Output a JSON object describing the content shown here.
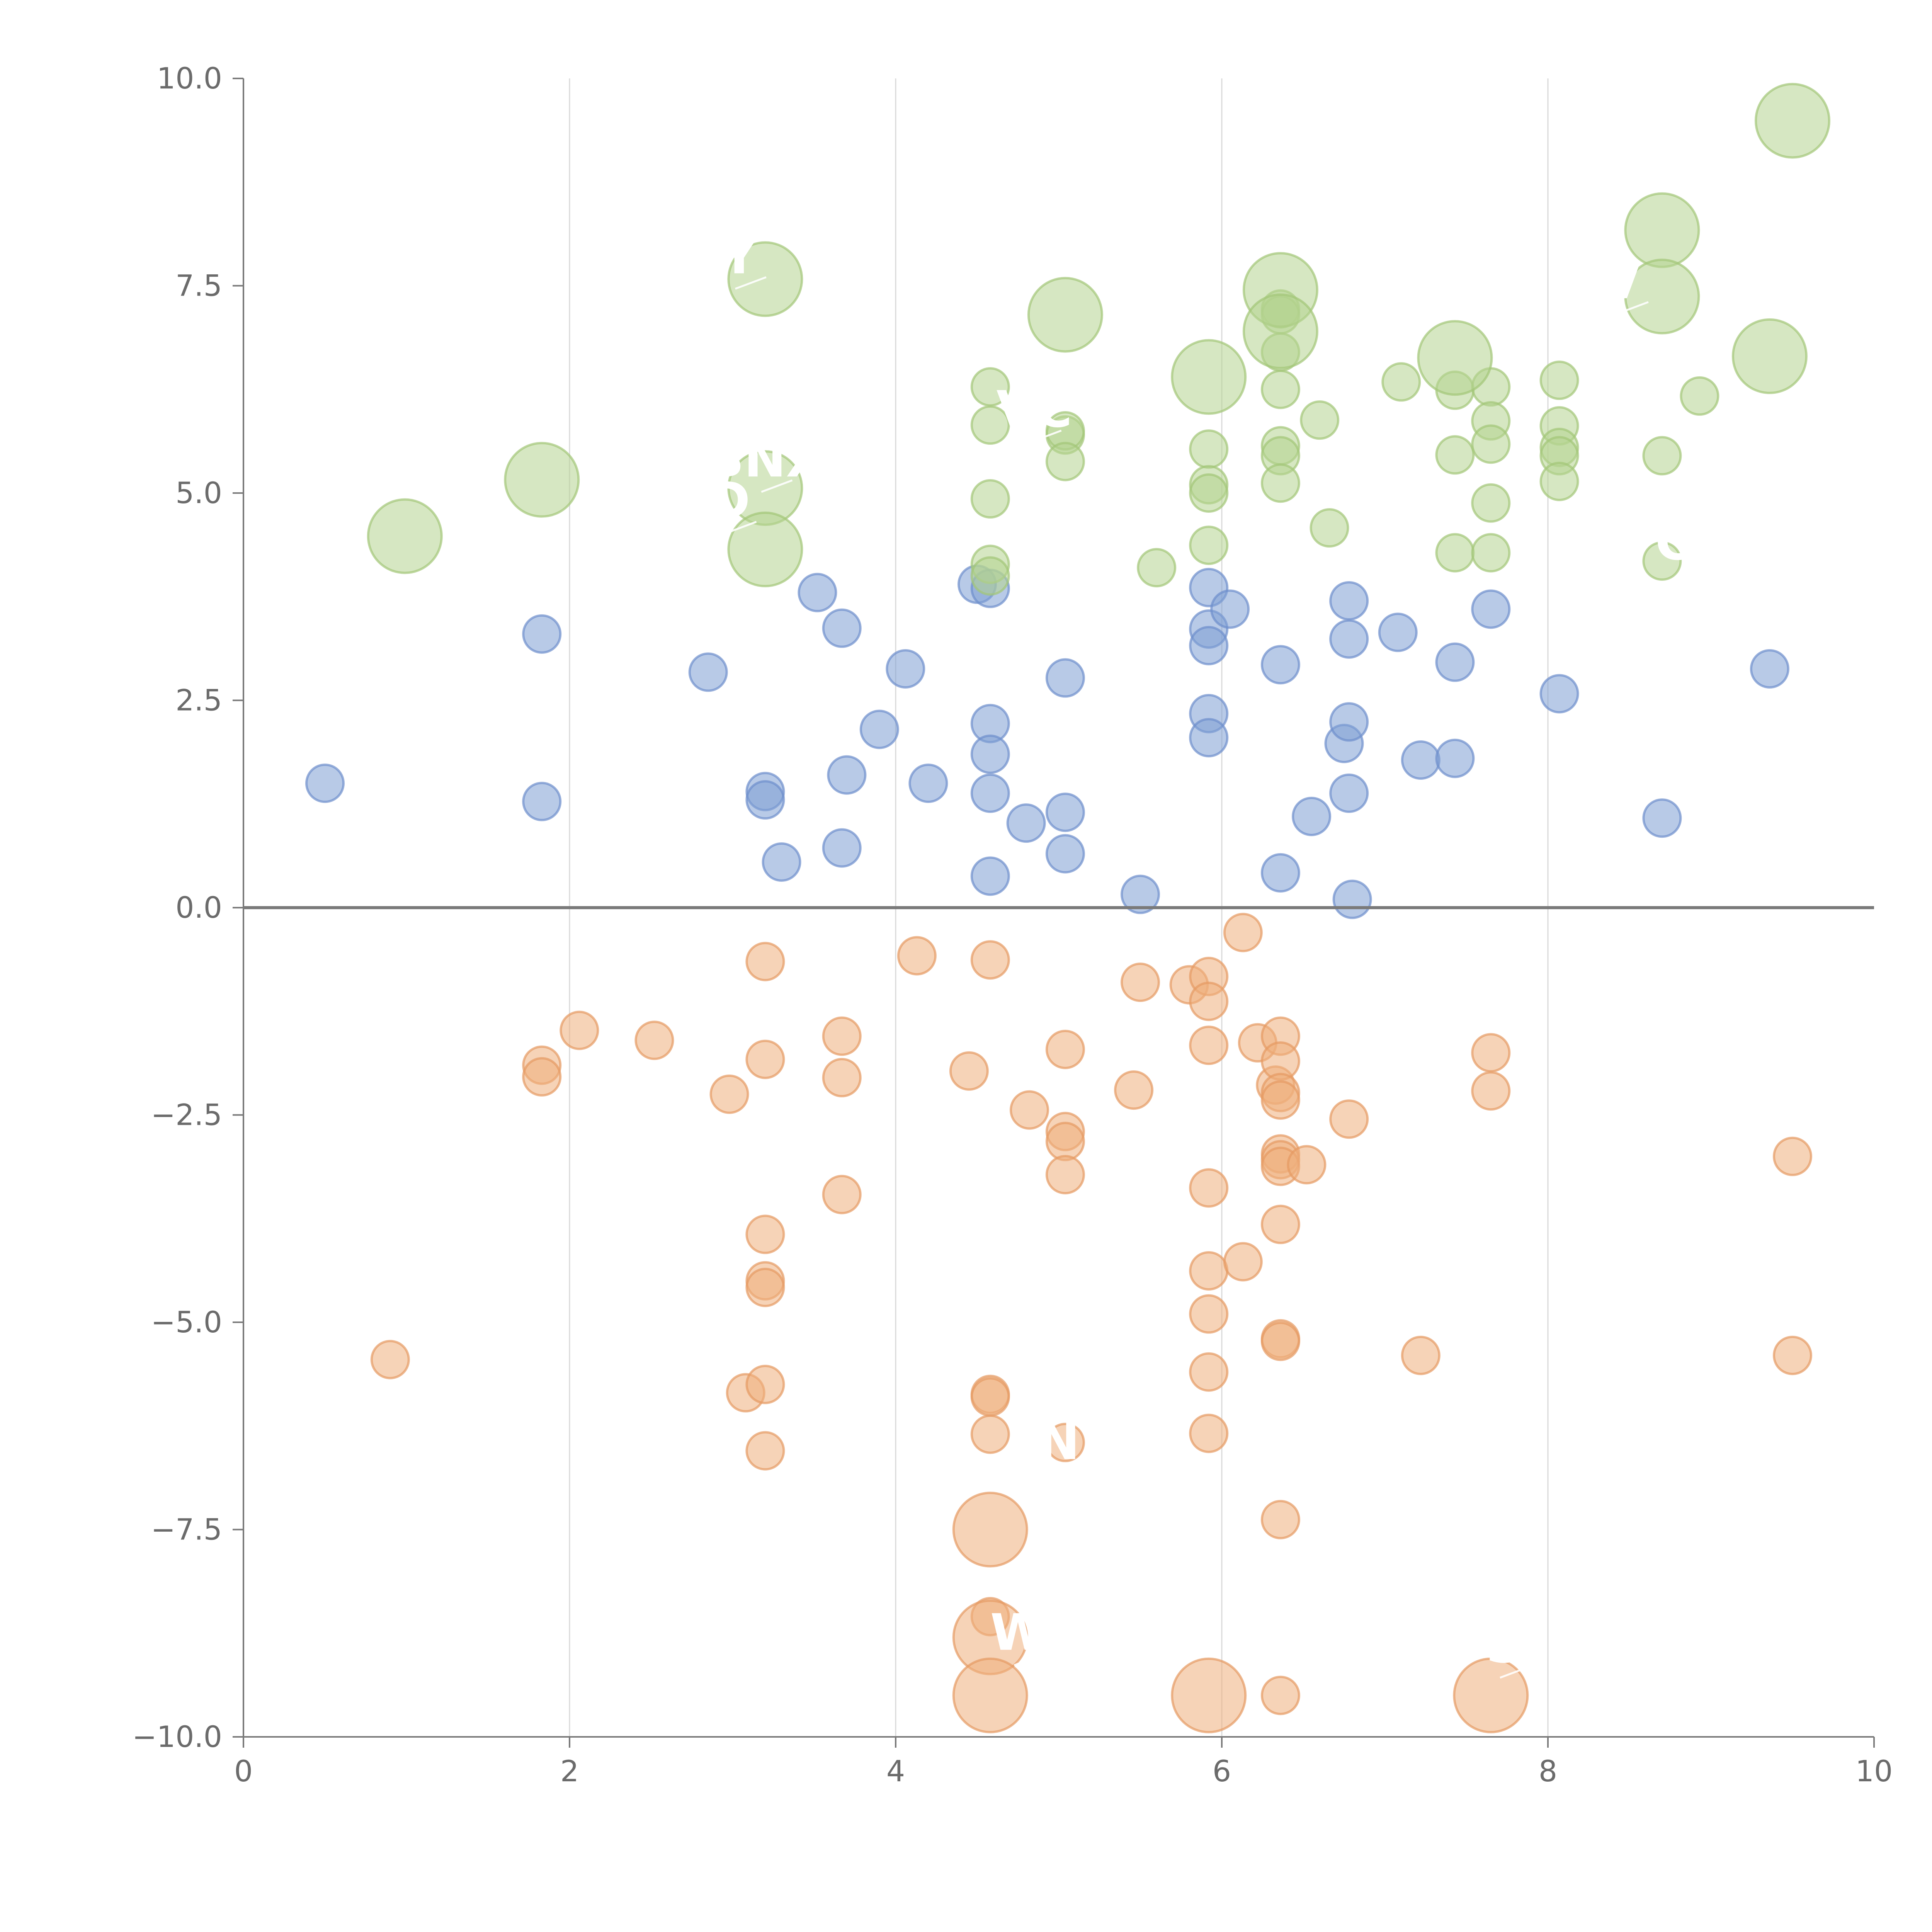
{
  "chart_data": {
    "type": "scatter",
    "title": "",
    "xlabel": "",
    "ylabel": "",
    "xlim": [
      0,
      10
    ],
    "ylim": [
      -10,
      10
    ],
    "x_ticks": [
      "0",
      "2",
      "4",
      "6",
      "8",
      "10"
    ],
    "y_ticks": [
      "10.0",
      "7.5",
      "5.0",
      "2.5",
      "0.0",
      "−2.5",
      "−5.0",
      "−7.5",
      "−10.0"
    ],
    "series": [
      {
        "name": "blue",
        "color": "#7d9fd3",
        "points": [
          {
            "x": 0.5,
            "y": 1.5
          },
          {
            "x": 1.83,
            "y": 3.3
          },
          {
            "x": 1.83,
            "y": 1.28
          },
          {
            "x": 2.85,
            "y": 2.84
          },
          {
            "x": 3.2,
            "y": 1.4
          },
          {
            "x": 3.2,
            "y": 1.3
          },
          {
            "x": 3.3,
            "y": 0.55
          },
          {
            "x": 3.52,
            "y": 3.8
          },
          {
            "x": 3.67,
            "y": 3.37
          },
          {
            "x": 3.67,
            "y": 0.72
          },
          {
            "x": 3.7,
            "y": 1.6
          },
          {
            "x": 3.9,
            "y": 2.15
          },
          {
            "x": 4.06,
            "y": 2.88
          },
          {
            "x": 4.2,
            "y": 1.5
          },
          {
            "x": 4.5,
            "y": 3.9
          },
          {
            "x": 4.58,
            "y": 3.85
          },
          {
            "x": 4.58,
            "y": 2.22
          },
          {
            "x": 4.58,
            "y": 1.85
          },
          {
            "x": 4.58,
            "y": 1.38
          },
          {
            "x": 4.58,
            "y": 0.38
          },
          {
            "x": 4.8,
            "y": 1.02
          },
          {
            "x": 5.04,
            "y": 2.77
          },
          {
            "x": 5.04,
            "y": 1.15
          },
          {
            "x": 5.04,
            "y": 0.65
          },
          {
            "x": 5.5,
            "y": 0.16
          },
          {
            "x": 5.92,
            "y": 3.86
          },
          {
            "x": 5.92,
            "y": 3.36
          },
          {
            "x": 5.92,
            "y": 3.16
          },
          {
            "x": 5.92,
            "y": 2.34
          },
          {
            "x": 5.92,
            "y": 2.05
          },
          {
            "x": 6.05,
            "y": 3.6
          },
          {
            "x": 6.36,
            "y": 2.93
          },
          {
            "x": 6.36,
            "y": 0.42
          },
          {
            "x": 6.55,
            "y": 1.1
          },
          {
            "x": 6.75,
            "y": 1.98
          },
          {
            "x": 6.78,
            "y": 3.7
          },
          {
            "x": 6.78,
            "y": 3.24
          },
          {
            "x": 6.78,
            "y": 2.24
          },
          {
            "x": 6.78,
            "y": 1.38
          },
          {
            "x": 6.8,
            "y": 0.1
          },
          {
            "x": 7.08,
            "y": 3.32
          },
          {
            "x": 7.22,
            "y": 1.78
          },
          {
            "x": 7.43,
            "y": 2.96
          },
          {
            "x": 7.43,
            "y": 1.8
          },
          {
            "x": 7.65,
            "y": 3.6
          },
          {
            "x": 8.07,
            "y": 2.58
          },
          {
            "x": 8.7,
            "y": 1.08
          },
          {
            "x": 9.36,
            "y": 2.88
          }
        ]
      },
      {
        "name": "orange",
        "color": "#efae7c",
        "points": [
          {
            "x": 0.9,
            "y": -5.45
          },
          {
            "x": 1.83,
            "y": -1.9
          },
          {
            "x": 1.83,
            "y": -2.04
          },
          {
            "x": 2.06,
            "y": -1.48
          },
          {
            "x": 2.52,
            "y": -1.6
          },
          {
            "x": 2.98,
            "y": -2.25
          },
          {
            "x": 3.08,
            "y": -5.85
          },
          {
            "x": 3.2,
            "y": -0.65
          },
          {
            "x": 3.2,
            "y": -1.83
          },
          {
            "x": 3.2,
            "y": -3.94
          },
          {
            "x": 3.2,
            "y": -4.5
          },
          {
            "x": 3.2,
            "y": -4.58
          },
          {
            "x": 3.2,
            "y": -5.75
          },
          {
            "x": 3.2,
            "y": -6.55
          },
          {
            "x": 3.67,
            "y": -1.55
          },
          {
            "x": 3.67,
            "y": -2.05
          },
          {
            "x": 3.67,
            "y": -3.46
          },
          {
            "x": 4.13,
            "y": -0.58
          },
          {
            "x": 4.45,
            "y": -1.97
          },
          {
            "x": 4.58,
            "y": -0.63
          },
          {
            "x": 4.58,
            "y": -5.87
          },
          {
            "x": 4.58,
            "y": -5.9
          },
          {
            "x": 4.58,
            "y": -6.35
          },
          {
            "x": 4.58,
            "y": -8.55
          },
          {
            "x": 4.82,
            "y": -2.44
          },
          {
            "x": 5.04,
            "y": -1.71
          },
          {
            "x": 5.04,
            "y": -2.7
          },
          {
            "x": 5.04,
            "y": -2.82
          },
          {
            "x": 5.04,
            "y": -3.22
          },
          {
            "x": 5.04,
            "y": -6.45
          },
          {
            "x": 5.46,
            "y": -2.2
          },
          {
            "x": 5.5,
            "y": -0.9
          },
          {
            "x": 5.8,
            "y": -0.93
          },
          {
            "x": 5.92,
            "y": -0.83
          },
          {
            "x": 5.92,
            "y": -1.13
          },
          {
            "x": 5.92,
            "y": -1.66
          },
          {
            "x": 5.92,
            "y": -3.38
          },
          {
            "x": 5.92,
            "y": -4.38
          },
          {
            "x": 5.92,
            "y": -4.9
          },
          {
            "x": 5.92,
            "y": -5.6
          },
          {
            "x": 5.92,
            "y": -6.34
          },
          {
            "x": 6.13,
            "y": -0.3
          },
          {
            "x": 6.13,
            "y": -4.27
          },
          {
            "x": 6.22,
            "y": -1.63
          },
          {
            "x": 6.33,
            "y": -2.14
          },
          {
            "x": 6.36,
            "y": -1.55
          },
          {
            "x": 6.36,
            "y": -1.85
          },
          {
            "x": 6.36,
            "y": -2.23
          },
          {
            "x": 6.36,
            "y": -2.32
          },
          {
            "x": 6.36,
            "y": -2.97
          },
          {
            "x": 6.36,
            "y": -3.04
          },
          {
            "x": 6.36,
            "y": -3.12
          },
          {
            "x": 6.36,
            "y": -3.82
          },
          {
            "x": 6.36,
            "y": -5.2
          },
          {
            "x": 6.36,
            "y": -5.23
          },
          {
            "x": 6.36,
            "y": -7.38
          },
          {
            "x": 6.36,
            "y": -9.5
          },
          {
            "x": 6.52,
            "y": -3.1
          },
          {
            "x": 6.78,
            "y": -2.55
          },
          {
            "x": 7.22,
            "y": -5.4
          },
          {
            "x": 7.65,
            "y": -1.75
          },
          {
            "x": 7.65,
            "y": -2.21
          },
          {
            "x": 9.5,
            "y": -3.0
          },
          {
            "x": 9.5,
            "y": -5.4
          }
        ],
        "big_points": [
          {
            "x": 4.58,
            "y": -7.5,
            "size": "large"
          },
          {
            "x": 4.58,
            "y": -8.8,
            "size": "large"
          },
          {
            "x": 4.58,
            "y": -9.5,
            "size": "large"
          },
          {
            "x": 5.92,
            "y": -9.5,
            "size": "large"
          },
          {
            "x": 7.65,
            "y": -9.5,
            "size": "large"
          }
        ]
      },
      {
        "name": "green",
        "color": "#b5d38f",
        "points": [
          {
            "x": 4.58,
            "y": 6.28
          },
          {
            "x": 4.58,
            "y": 5.82
          },
          {
            "x": 4.58,
            "y": 4.93
          },
          {
            "x": 4.58,
            "y": 4.14
          },
          {
            "x": 4.58,
            "y": 4.0
          },
          {
            "x": 5.04,
            "y": 5.7
          },
          {
            "x": 5.04,
            "y": 5.75
          },
          {
            "x": 5.04,
            "y": 5.38
          },
          {
            "x": 5.6,
            "y": 4.1
          },
          {
            "x": 5.92,
            "y": 5.53
          },
          {
            "x": 5.92,
            "y": 5.1
          },
          {
            "x": 5.92,
            "y": 5.0
          },
          {
            "x": 5.92,
            "y": 4.37
          },
          {
            "x": 6.36,
            "y": 7.22
          },
          {
            "x": 6.36,
            "y": 7.15
          },
          {
            "x": 6.36,
            "y": 6.7
          },
          {
            "x": 6.36,
            "y": 6.25
          },
          {
            "x": 6.36,
            "y": 5.57
          },
          {
            "x": 6.36,
            "y": 5.45
          },
          {
            "x": 6.36,
            "y": 5.12
          },
          {
            "x": 6.6,
            "y": 5.88
          },
          {
            "x": 6.66,
            "y": 4.58
          },
          {
            "x": 7.1,
            "y": 6.34
          },
          {
            "x": 7.43,
            "y": 6.24
          },
          {
            "x": 7.43,
            "y": 5.46
          },
          {
            "x": 7.43,
            "y": 4.28
          },
          {
            "x": 7.65,
            "y": 6.28
          },
          {
            "x": 7.65,
            "y": 5.87
          },
          {
            "x": 7.65,
            "y": 5.59
          },
          {
            "x": 7.65,
            "y": 4.88
          },
          {
            "x": 7.65,
            "y": 4.28
          },
          {
            "x": 8.07,
            "y": 6.36
          },
          {
            "x": 8.07,
            "y": 5.81
          },
          {
            "x": 8.07,
            "y": 5.55
          },
          {
            "x": 8.07,
            "y": 5.45
          },
          {
            "x": 8.07,
            "y": 5.14
          },
          {
            "x": 8.7,
            "y": 5.45
          },
          {
            "x": 8.7,
            "y": 4.18
          },
          {
            "x": 8.93,
            "y": 6.17
          }
        ],
        "big_points": [
          {
            "x": 0.99,
            "y": 4.48,
            "size": "large"
          },
          {
            "x": 1.83,
            "y": 5.16,
            "size": "large"
          },
          {
            "x": 3.2,
            "y": 7.58,
            "size": "large"
          },
          {
            "x": 3.2,
            "y": 5.06,
            "size": "large"
          },
          {
            "x": 3.2,
            "y": 4.32,
            "size": "large"
          },
          {
            "x": 5.04,
            "y": 7.15,
            "size": "large"
          },
          {
            "x": 5.92,
            "y": 6.4,
            "size": "large"
          },
          {
            "x": 6.36,
            "y": 7.45,
            "size": "large"
          },
          {
            "x": 6.36,
            "y": 6.95,
            "size": "large"
          },
          {
            "x": 7.43,
            "y": 6.63,
            "size": "large"
          },
          {
            "x": 8.7,
            "y": 8.17,
            "size": "large"
          },
          {
            "x": 8.7,
            "y": 7.37,
            "size": "large"
          },
          {
            "x": 9.36,
            "y": 6.65,
            "size": "large"
          },
          {
            "x": 9.5,
            "y": 9.49,
            "size": "large"
          }
        ]
      }
    ],
    "annotations": [
      {
        "text": "Y",
        "x": 3.04,
        "y": 7.65
      },
      {
        "text": "VC",
        "x": 4.85,
        "y": 5.8
      },
      {
        "text": "BNX",
        "x": 3.2,
        "y": 5.2
      },
      {
        "text": "D",
        "x": 2.98,
        "y": 4.7
      },
      {
        "text": "V",
        "x": 8.45,
        "y": 7.35
      },
      {
        "text": "CH",
        "x": 8.9,
        "y": 4.2
      },
      {
        "text": "N",
        "x": 5.0,
        "y": -6.65
      },
      {
        "text": "W",
        "x": 4.75,
        "y": -8.95
      },
      {
        "text": "S",
        "x": 7.73,
        "y": -9.1
      }
    ]
  }
}
